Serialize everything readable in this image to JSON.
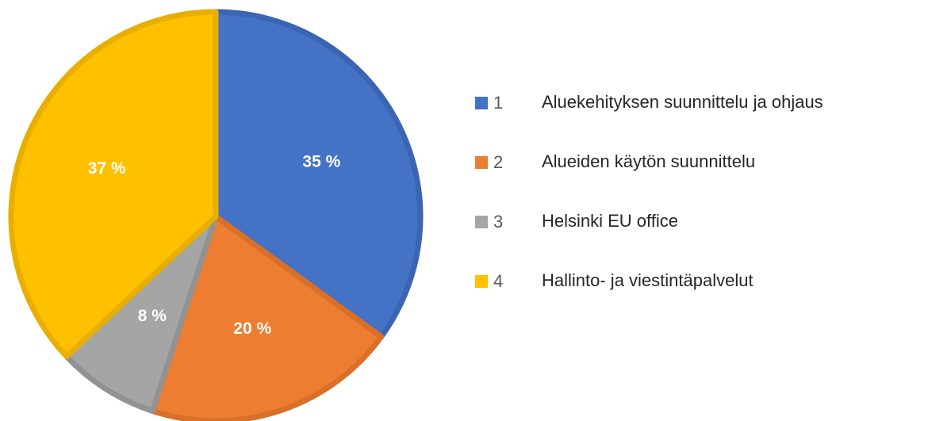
{
  "chart_data": {
    "type": "pie",
    "category_numbers": [
      "1",
      "2",
      "3",
      "4"
    ],
    "categories": [
      "Aluekehityksen suunnittelu ja ohjaus",
      "Alueiden käytön suunnittelu",
      "Helsinki EU office",
      "Hallinto- ja viestintäpalvelut"
    ],
    "values": [
      35,
      20,
      8,
      37
    ],
    "value_labels": [
      "35 %",
      "20 %",
      "8 %",
      "37 %"
    ],
    "colors": [
      "#4472c4",
      "#ed7d31",
      "#a5a5a5",
      "#ffc000"
    ],
    "edge_colors": [
      "#3b65b3",
      "#d8702a",
      "#929292",
      "#e8ae00"
    ],
    "legend": "right"
  }
}
